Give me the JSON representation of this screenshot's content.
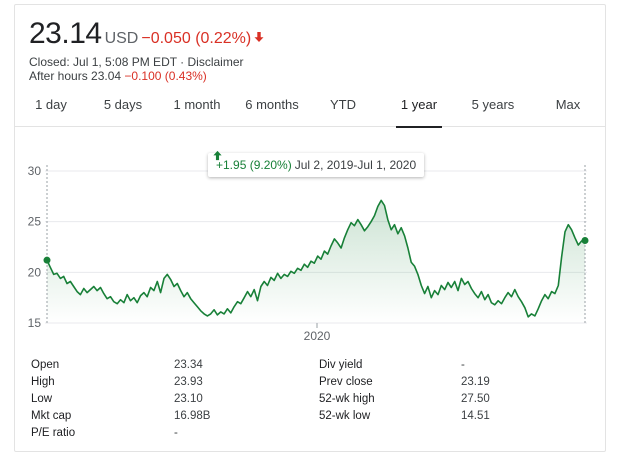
{
  "quote": {
    "price": "23.14",
    "currency": "USD",
    "change": "−0.050 (0.22%)",
    "closed_text": "Closed: Jul 1, 5:08 PM EDT · Disclaimer",
    "after_hours_prefix": "After hours 23.04",
    "after_hours_change": "−0.100 (0.43%)",
    "down_color": "#d93025",
    "up_color": "#188038"
  },
  "tabs": [
    {
      "label": "1 day",
      "active": false
    },
    {
      "label": "5 days",
      "active": false
    },
    {
      "label": "1 month",
      "active": false
    },
    {
      "label": "6 months",
      "active": false
    },
    {
      "label": "YTD",
      "active": false
    },
    {
      "label": "1 year",
      "active": true
    },
    {
      "label": "5 years",
      "active": false
    },
    {
      "label": "Max",
      "active": false
    }
  ],
  "tooltip": {
    "change": "+1.95 (9.20%)",
    "range": "Jul 2, 2019-Jul 1, 2020"
  },
  "chart_data": {
    "type": "area",
    "x_tick_labels": [
      "2020"
    ],
    "y_ticks": [
      15,
      20,
      25,
      30
    ],
    "ylim": [
      15,
      30
    ],
    "line_color": "#188038",
    "fill": "gradient green",
    "grid": "horizontal",
    "series": [
      {
        "values": [
          21.2,
          20.5,
          19.8,
          19.9,
          19.4,
          19.6,
          18.9,
          19.1,
          18.6,
          18.1,
          17.8,
          18.4,
          18.0,
          18.3,
          18.6,
          18.2,
          18.5,
          17.9,
          17.4,
          17.6,
          17.1,
          16.9,
          17.3,
          17.0,
          17.8,
          17.2,
          17.5,
          17.0,
          17.7,
          18.0,
          17.6,
          18.5,
          18.2,
          19.1,
          18.0,
          19.4,
          19.8,
          19.3,
          18.6,
          18.9,
          18.2,
          17.6,
          18.0,
          17.4,
          17.0,
          16.6,
          16.2,
          15.9,
          15.7,
          15.9,
          16.3,
          15.8,
          16.1,
          15.9,
          16.4,
          16.0,
          16.6,
          17.1,
          16.9,
          17.5,
          18.1,
          17.6,
          18.3,
          17.2,
          18.6,
          19.1,
          18.7,
          19.5,
          19.2,
          19.9,
          19.4,
          19.8,
          19.6,
          20.1,
          19.9,
          20.4,
          20.2,
          20.8,
          20.5,
          21.1,
          20.9,
          21.6,
          21.3,
          22.1,
          21.8,
          22.6,
          23.3,
          22.9,
          22.4,
          23.4,
          24.2,
          24.9,
          24.6,
          25.2,
          24.7,
          24.1,
          24.5,
          25.0,
          25.6,
          26.5,
          27.1,
          26.6,
          25.2,
          24.2,
          24.7,
          23.8,
          24.4,
          23.6,
          22.4,
          21.0,
          20.6,
          19.8,
          18.7,
          17.9,
          18.6,
          17.5,
          18.2,
          17.8,
          18.7,
          18.3,
          19.0,
          18.5,
          19.1,
          18.2,
          19.4,
          18.8,
          19.1,
          18.4,
          17.9,
          17.5,
          18.1,
          17.3,
          17.8,
          17.0,
          16.8,
          17.2,
          16.9,
          17.5,
          18.0,
          17.6,
          18.3,
          17.6,
          17.1,
          16.5,
          15.6,
          15.9,
          15.7,
          16.4,
          17.2,
          17.8,
          17.4,
          18.1,
          17.9,
          18.7,
          21.5,
          24.0,
          24.7,
          24.2,
          23.4,
          22.7,
          23.1,
          23.14
        ]
      }
    ]
  },
  "stats": {
    "left": [
      {
        "label": "Open",
        "value": "23.34"
      },
      {
        "label": "High",
        "value": "23.93"
      },
      {
        "label": "Low",
        "value": "23.10"
      },
      {
        "label": "Mkt cap",
        "value": "16.98B"
      },
      {
        "label": "P/E ratio",
        "value": "-"
      }
    ],
    "right": [
      {
        "label": "Div yield",
        "value": "-"
      },
      {
        "label": "Prev close",
        "value": "23.19"
      },
      {
        "label": "52-wk high",
        "value": "27.50"
      },
      {
        "label": "52-wk low",
        "value": "14.51"
      }
    ]
  }
}
